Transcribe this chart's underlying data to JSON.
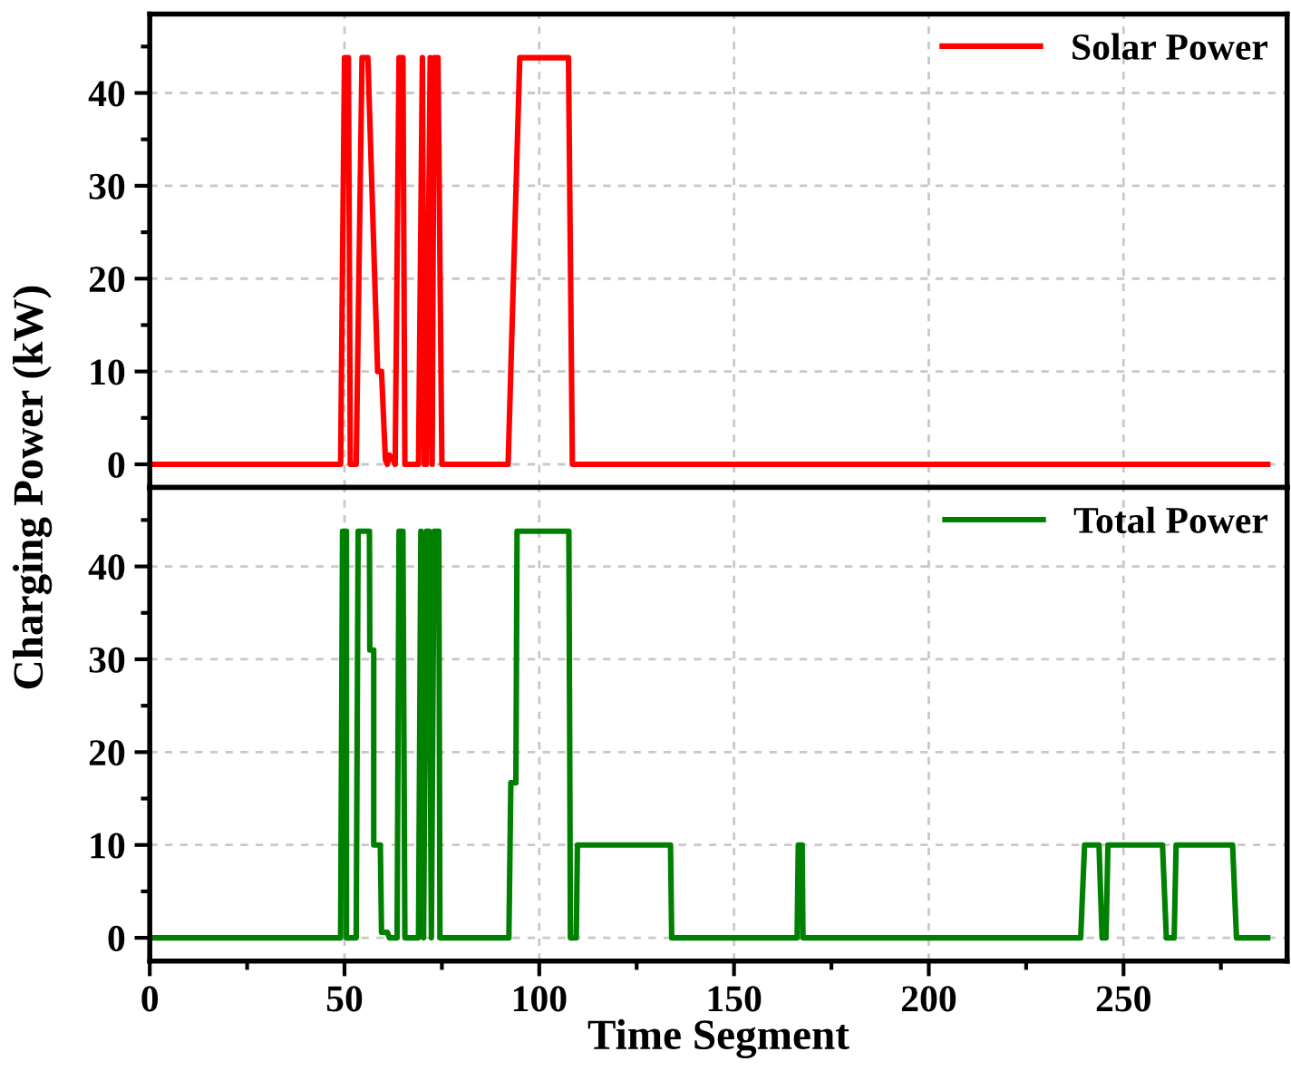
{
  "chart_data": [
    {
      "type": "line",
      "xlim": [
        0,
        292
      ],
      "xticks": [
        0,
        {
          "value": 25,
          "label": null
        },
        50,
        {
          "value": 75,
          "label": null
        },
        100,
        {
          "value": 125,
          "label": null
        },
        150,
        {
          "value": 175,
          "label": null
        },
        200,
        {
          "value": 225,
          "label": null
        },
        250,
        {
          "value": 275,
          "label": null
        }
      ],
      "ylim": [
        -2.5,
        48.5
      ],
      "yticks": [
        0,
        {
          "value": 5,
          "label": null
        },
        10,
        {
          "value": 15,
          "label": null
        },
        20,
        {
          "value": 25,
          "label": null
        },
        30,
        {
          "value": 35,
          "label": null
        },
        40,
        {
          "value": 45,
          "label": null
        }
      ],
      "tick_labels": "y",
      "grid": true,
      "legend": "top right",
      "line_style": "solid",
      "marker": "none",
      "series": [
        {
          "name": "Solar Power",
          "color": "#ff0000",
          "x": [
            0,
            49,
            50,
            51,
            51.5,
            53,
            54.5,
            56,
            58.5,
            59.5,
            60.5,
            61,
            61.5,
            62.5,
            63,
            64,
            65,
            65.5,
            69,
            70,
            70.5,
            71,
            72,
            72.5,
            73,
            74,
            75,
            92,
            95,
            107.5,
            108.5,
            287
          ],
          "values": [
            0,
            0,
            43.8,
            43.8,
            0,
            0,
            43.8,
            43.8,
            10,
            10,
            0.5,
            0,
            1,
            0.5,
            0,
            43.8,
            43.8,
            0,
            0,
            43.8,
            0,
            0,
            43.8,
            0,
            43.8,
            43.8,
            0,
            0,
            43.8,
            43.8,
            0,
            0
          ]
        }
      ]
    },
    {
      "type": "line",
      "xlim": [
        0,
        292
      ],
      "xticks": [
        0,
        {
          "value": 25,
          "label": null
        },
        50,
        {
          "value": 75,
          "label": null
        },
        100,
        {
          "value": 125,
          "label": null
        },
        150,
        {
          "value": 175,
          "label": null
        },
        200,
        {
          "value": 225,
          "label": null
        },
        250,
        {
          "value": 275,
          "label": null
        }
      ],
      "ylim": [
        -2.5,
        48.5
      ],
      "yticks": [
        0,
        {
          "value": 5,
          "label": null
        },
        10,
        {
          "value": 15,
          "label": null
        },
        20,
        {
          "value": 25,
          "label": null
        },
        30,
        {
          "value": 35,
          "label": null
        },
        40,
        {
          "value": 45,
          "label": null
        }
      ],
      "xlabel": "Time Segment",
      "ylabel": "Charging Power (kW)",
      "grid": true,
      "legend": "top right",
      "line_style": "solid",
      "marker": "none",
      "series": [
        {
          "name": "Total Power",
          "color": "#008000",
          "x": [
            0,
            49,
            49.5,
            50.5,
            50.5,
            53,
            53.5,
            56.4,
            56.5,
            57.5,
            57.5,
            59.2,
            59.5,
            61,
            61.5,
            63.5,
            64,
            65,
            65.5,
            69,
            69.6,
            70.3,
            71,
            71.7,
            72.3,
            73,
            74.2,
            74.5,
            92.2,
            92.7,
            94,
            94.3,
            107.6,
            108,
            109.5,
            109.8,
            133.7,
            134,
            166.2,
            166.5,
            167.5,
            167.7,
            239,
            240,
            243.7,
            244.5,
            245.5,
            246,
            260,
            261,
            263,
            263.5,
            278,
            279,
            287
          ],
          "values": [
            0,
            0,
            43.8,
            43.8,
            0,
            0,
            43.8,
            43.8,
            31,
            31,
            10,
            10,
            0.6,
            0.6,
            0,
            0,
            43.8,
            43.8,
            0,
            0,
            43.8,
            0,
            43.8,
            43.8,
            0,
            43.8,
            43.8,
            0,
            0,
            16.7,
            16.7,
            43.8,
            43.8,
            0,
            0,
            10,
            10,
            0,
            0,
            10,
            10,
            0,
            0,
            10,
            10,
            0,
            0,
            10,
            10,
            0,
            0,
            10,
            10,
            0,
            0
          ]
        }
      ]
    }
  ]
}
